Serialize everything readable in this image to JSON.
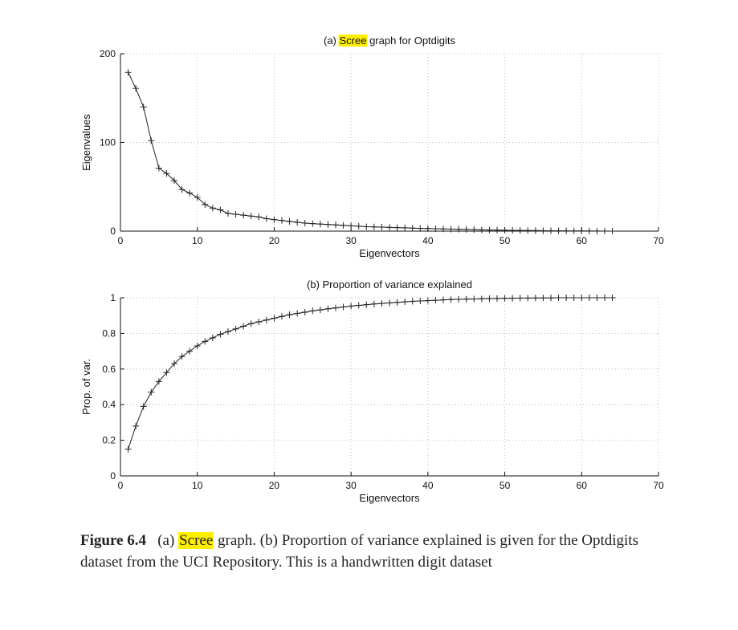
{
  "chart_data": [
    {
      "type": "line",
      "marker": "+",
      "title_highlight": "Scree",
      "title_rest": " graph for Optdigits",
      "title_prefix": "(a) ",
      "xlabel": "Eigenvectors",
      "ylabel": "Eigenvalues",
      "xlim": [
        0,
        70
      ],
      "ylim": [
        0,
        200
      ],
      "xticks": [
        0,
        10,
        20,
        30,
        40,
        50,
        60,
        70
      ],
      "yticks": [
        0,
        100,
        200
      ],
      "grid": true,
      "x": [
        1,
        2,
        3,
        4,
        5,
        6,
        7,
        8,
        9,
        10,
        11,
        12,
        13,
        14,
        15,
        16,
        17,
        18,
        19,
        20,
        21,
        22,
        23,
        24,
        25,
        26,
        27,
        28,
        29,
        30,
        31,
        32,
        33,
        34,
        35,
        36,
        37,
        38,
        39,
        40,
        41,
        42,
        43,
        44,
        45,
        46,
        47,
        48,
        49,
        50,
        51,
        52,
        53,
        54,
        55,
        56,
        57,
        58,
        59,
        60,
        61,
        62,
        63,
        64
      ],
      "y": [
        179,
        161,
        140,
        102,
        71,
        65,
        57,
        47,
        43,
        38,
        30,
        26,
        24,
        20,
        19,
        18,
        17,
        16,
        14,
        13,
        12,
        11,
        10,
        9,
        8.5,
        8,
        7.5,
        7,
        6.5,
        6,
        5.5,
        5,
        4.8,
        4.5,
        4.2,
        4,
        3.7,
        3.4,
        3.1,
        2.9,
        2.7,
        2.5,
        2.3,
        2.1,
        1.9,
        1.7,
        1.5,
        1.3,
        1.1,
        1,
        0.9,
        0.8,
        0.7,
        0.6,
        0.5,
        0.4,
        0.35,
        0.3,
        0.25,
        0.2,
        0.15,
        0.1,
        0.05,
        0
      ]
    },
    {
      "type": "line",
      "marker": "+",
      "title": "(b) Proportion of variance explained",
      "xlabel": "Eigenvectors",
      "ylabel": "Prop. of var.",
      "xlim": [
        0,
        70
      ],
      "ylim": [
        0,
        1
      ],
      "xticks": [
        0,
        10,
        20,
        30,
        40,
        50,
        60,
        70
      ],
      "yticks": [
        0,
        0.2,
        0.4,
        0.6,
        0.8,
        1
      ],
      "grid": true,
      "x": [
        1,
        2,
        3,
        4,
        5,
        6,
        7,
        8,
        9,
        10,
        11,
        12,
        13,
        14,
        15,
        16,
        17,
        18,
        19,
        20,
        21,
        22,
        23,
        24,
        25,
        26,
        27,
        28,
        29,
        30,
        31,
        32,
        33,
        34,
        35,
        36,
        37,
        38,
        39,
        40,
        41,
        42,
        43,
        44,
        45,
        46,
        47,
        48,
        49,
        50,
        51,
        52,
        53,
        54,
        55,
        56,
        57,
        58,
        59,
        60,
        61,
        62,
        63,
        64
      ],
      "y": [
        0.15,
        0.28,
        0.39,
        0.47,
        0.53,
        0.58,
        0.63,
        0.67,
        0.7,
        0.73,
        0.755,
        0.775,
        0.795,
        0.81,
        0.825,
        0.84,
        0.855,
        0.865,
        0.875,
        0.885,
        0.895,
        0.905,
        0.912,
        0.919,
        0.926,
        0.932,
        0.938,
        0.943,
        0.948,
        0.953,
        0.957,
        0.961,
        0.965,
        0.968,
        0.971,
        0.974,
        0.977,
        0.98,
        0.982,
        0.984,
        0.986,
        0.988,
        0.99,
        0.991,
        0.992,
        0.993,
        0.994,
        0.995,
        0.996,
        0.997,
        0.997,
        0.998,
        0.998,
        0.999,
        0.999,
        0.999,
        1,
        1,
        1,
        1,
        1,
        1,
        1,
        1
      ]
    }
  ],
  "caption": {
    "fignum": "Figure 6.4",
    "part1": "   (a) ",
    "highlight": "Scree",
    "part2": " graph. (b) Proportion of variance explained is given for the Optdigits dataset from the UCI Repository.  This is a handwritten digit dataset"
  }
}
